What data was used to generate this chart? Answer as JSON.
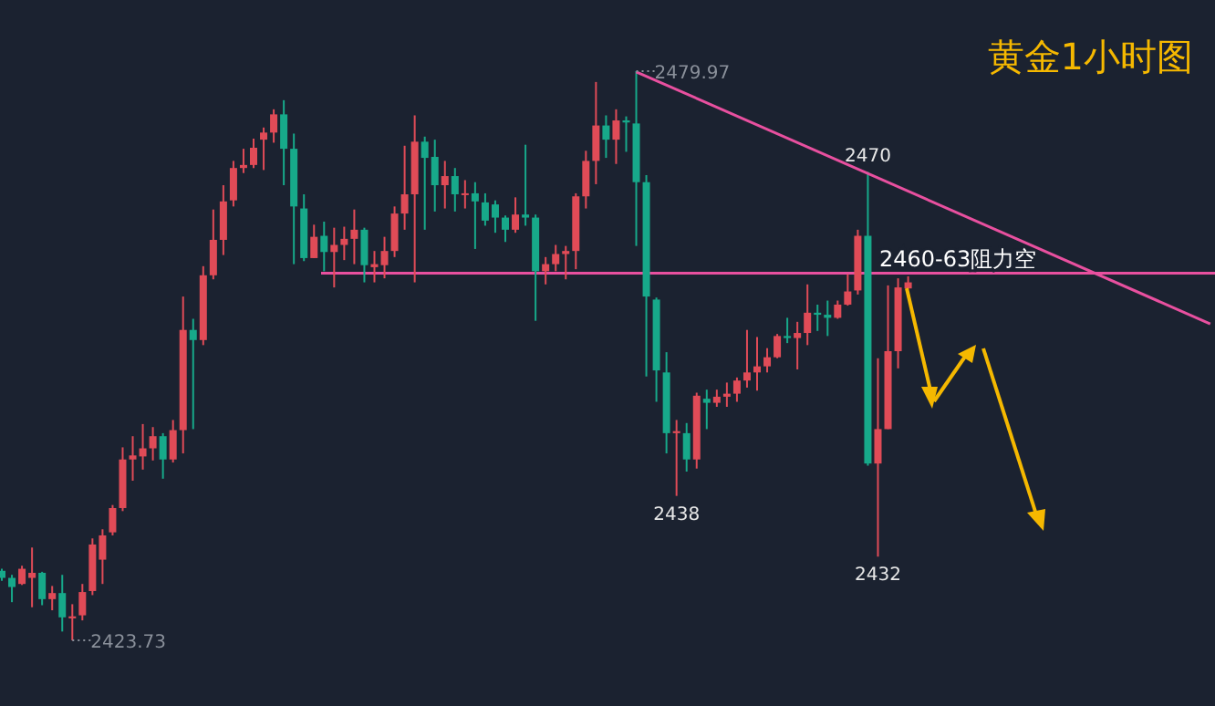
{
  "chart_data": {
    "type": "candlestick",
    "title": "黄金1小时图",
    "categories": [
      null,
      null,
      null,
      null,
      null,
      null,
      null,
      null,
      null,
      null,
      null,
      null,
      null,
      null,
      null,
      null,
      null,
      null,
      null,
      null,
      null,
      null,
      null,
      null,
      null,
      null,
      null,
      null,
      null,
      null,
      null,
      null,
      null,
      null,
      null,
      null,
      null,
      null,
      null,
      null,
      null,
      null,
      null,
      null,
      null,
      null,
      null,
      null,
      null,
      null,
      null,
      null,
      null,
      null,
      null,
      null,
      null,
      null,
      null,
      null,
      null,
      null,
      null,
      null,
      null,
      null,
      null,
      null,
      null,
      null,
      null,
      null,
      null,
      null,
      null,
      null,
      null,
      null,
      null,
      null,
      null,
      null,
      null,
      null,
      null,
      null,
      null,
      null,
      null,
      null,
      null,
      null,
      null,
      null,
      null,
      null,
      null,
      null,
      null,
      null,
      null,
      null,
      null,
      null,
      null,
      null,
      null,
      null,
      null,
      null,
      null,
      null,
      null,
      null,
      null,
      null,
      null,
      null,
      null,
      null,
      null
    ],
    "ohlc": [
      [
        2430.6,
        2430.8,
        2429.6,
        2429.9
      ],
      [
        2429.9,
        2430.2,
        2427.5,
        2429.0
      ],
      [
        2429.3,
        2431.1,
        2429.2,
        2430.8
      ],
      [
        2429.9,
        2432.9,
        2427.0,
        2430.4
      ],
      [
        2430.4,
        2430.5,
        2427.2,
        2427.8
      ],
      [
        2427.8,
        2429.1,
        2426.7,
        2428.4
      ],
      [
        2428.4,
        2430.2,
        2424.6,
        2426.0
      ],
      [
        2425.9,
        2427.3,
        2423.73,
        2426.1
      ],
      [
        2426.2,
        2429.3,
        2425.7,
        2428.5
      ],
      [
        2428.6,
        2433.8,
        2428.2,
        2433.2
      ],
      [
        2431.7,
        2434.7,
        2429.3,
        2434.1
      ],
      [
        2434.4,
        2437.1,
        2434.1,
        2436.8
      ],
      [
        2436.8,
        2442.8,
        2436.5,
        2441.6
      ],
      [
        2441.6,
        2443.9,
        2439.5,
        2442.0
      ],
      [
        2441.9,
        2445.1,
        2440.6,
        2442.7
      ],
      [
        2442.7,
        2444.8,
        2441.5,
        2443.9
      ],
      [
        2443.9,
        2444.2,
        2439.7,
        2441.6
      ],
      [
        2441.6,
        2445.5,
        2441.3,
        2444.5
      ],
      [
        2444.5,
        2457.7,
        2442.2,
        2454.4
      ],
      [
        2454.4,
        2455.5,
        2444.6,
        2453.4
      ],
      [
        2453.4,
        2460.7,
        2452.9,
        2459.8
      ],
      [
        2459.8,
        2466.3,
        2459.4,
        2463.3
      ],
      [
        2463.3,
        2468.7,
        2461.8,
        2467.1
      ],
      [
        2467.2,
        2471.1,
        2466.6,
        2470.4
      ],
      [
        2470.4,
        2472.3,
        2469.9,
        2470.7
      ],
      [
        2470.7,
        2473.3,
        2470.4,
        2472.4
      ],
      [
        2473.2,
        2474.4,
        2470.2,
        2473.9
      ],
      [
        2473.9,
        2476.2,
        2472.9,
        2475.7
      ],
      [
        2475.7,
        2477.1,
        2468.7,
        2472.3
      ],
      [
        2472.3,
        2473.8,
        2460.9,
        2466.6
      ],
      [
        2466.4,
        2467.8,
        2461.2,
        2461.5
      ],
      [
        2461.5,
        2464.8,
        2461.5,
        2463.6
      ],
      [
        2463.7,
        2465.1,
        2460.2,
        2462.1
      ],
      [
        2462.1,
        2464.5,
        2458.6,
        2462.8
      ],
      [
        2462.8,
        2464.6,
        2461.3,
        2463.4
      ],
      [
        2463.4,
        2466.3,
        2460.9,
        2464.3
      ],
      [
        2464.3,
        2464.5,
        2459.1,
        2460.8
      ],
      [
        2460.6,
        2462.2,
        2459.1,
        2460.9
      ],
      [
        2460.8,
        2463.6,
        2459.5,
        2462.2
      ],
      [
        2462.2,
        2466.6,
        2461.6,
        2465.9
      ],
      [
        2465.9,
        2472.6,
        2464.3,
        2467.8
      ],
      [
        2467.8,
        2475.6,
        2459.1,
        2473.0
      ],
      [
        2473.0,
        2473.5,
        2464.3,
        2471.4
      ],
      [
        2471.5,
        2473.2,
        2466.1,
        2468.7
      ],
      [
        2468.7,
        2471.1,
        2466.4,
        2469.6
      ],
      [
        2469.6,
        2470.4,
        2466.1,
        2467.8
      ],
      [
        2467.8,
        2469.2,
        2466.4,
        2467.9
      ],
      [
        2467.9,
        2469.0,
        2462.4,
        2467.1
      ],
      [
        2467.0,
        2467.9,
        2464.7,
        2465.2
      ],
      [
        2466.8,
        2467.2,
        2464.0,
        2465.5
      ],
      [
        2465.5,
        2465.7,
        2463.1,
        2464.3
      ],
      [
        2464.3,
        2467.5,
        2464.0,
        2465.8
      ],
      [
        2465.8,
        2472.7,
        2464.7,
        2465.5
      ],
      [
        2465.5,
        2465.8,
        2455.3,
        2460.2
      ],
      [
        2460.2,
        2461.6,
        2458.9,
        2460.9
      ],
      [
        2460.9,
        2462.8,
        2460.2,
        2461.9
      ],
      [
        2461.9,
        2462.7,
        2459.4,
        2462.2
      ],
      [
        2462.2,
        2467.9,
        2460.4,
        2467.6
      ],
      [
        2467.6,
        2472.1,
        2466.4,
        2471.1
      ],
      [
        2471.1,
        2478.9,
        2468.8,
        2474.6
      ],
      [
        2474.6,
        2475.6,
        2471.4,
        2473.2
      ],
      [
        2473.2,
        2476.2,
        2470.8,
        2475.1
      ],
      [
        2475.1,
        2475.5,
        2472.0,
        2474.9
      ],
      [
        2474.8,
        2479.97,
        2462.7,
        2469.0
      ],
      [
        2469.0,
        2469.7,
        2449.8,
        2457.7
      ],
      [
        2457.4,
        2457.6,
        2447.3,
        2450.4
      ],
      [
        2450.2,
        2452.2,
        2442.2,
        2444.2
      ],
      [
        2444.2,
        2445.5,
        2438,
        2444.4
      ],
      [
        2444.2,
        2445.2,
        2440.4,
        2441.6
      ],
      [
        2441.6,
        2448.2,
        2440.7,
        2447.9
      ],
      [
        2447.6,
        2448.5,
        2444.6,
        2447.2
      ],
      [
        2447.2,
        2448.5,
        2446.8,
        2447.8
      ],
      [
        2447.8,
        2449.2,
        2446.8,
        2448.1
      ],
      [
        2448.1,
        2449.7,
        2447.3,
        2449.4
      ],
      [
        2449.4,
        2454.4,
        2448.7,
        2450.2
      ],
      [
        2450.2,
        2453.7,
        2448.4,
        2450.8
      ],
      [
        2450.8,
        2452.6,
        2450.2,
        2451.7
      ],
      [
        2451.7,
        2454.0,
        2451.6,
        2453.8
      ],
      [
        2453.8,
        2455.6,
        2453.1,
        2453.6
      ],
      [
        2453.6,
        2455.2,
        2450.5,
        2454.1
      ],
      [
        2454.1,
        2458.9,
        2452.9,
        2456.1
      ],
      [
        2456.1,
        2456.9,
        2454.3,
        2455.9
      ],
      [
        2455.9,
        2457.3,
        2453.8,
        2455.6
      ],
      [
        2455.6,
        2457.3,
        2455.5,
        2456.9
      ],
      [
        2456.9,
        2459.9,
        2456.8,
        2458.2
      ],
      [
        2458.3,
        2464.3,
        2457.9,
        2463.7
      ],
      [
        2463.7,
        2470,
        2441.0,
        2441.2
      ],
      [
        2441.2,
        2451.6,
        2432,
        2444.6
      ],
      [
        2444.6,
        2458.8,
        2444.6,
        2452.3
      ],
      [
        2452.3,
        2459.5,
        2450.6,
        2458.6
      ],
      [
        2458.5,
        2459.7,
        2458.5,
        2459.1
      ],
      null,
      null,
      null,
      null,
      null,
      null,
      null,
      null,
      null,
      null,
      null,
      null,
      null,
      null,
      null,
      null,
      null,
      null,
      null,
      null,
      null,
      null,
      null,
      null,
      null,
      null,
      null,
      null,
      null,
      null
    ],
    "series": [
      {
        "type": "line",
        "values": [
          null,
          null,
          null,
          null,
          null,
          null,
          null,
          null,
          null,
          null,
          null,
          null,
          null,
          null,
          null,
          null,
          null,
          null,
          null,
          null,
          null,
          null,
          null,
          null,
          null,
          null,
          null,
          null,
          null,
          null,
          null,
          null,
          null,
          null,
          null,
          null,
          null,
          null,
          null,
          null,
          null,
          null,
          null,
          null,
          null,
          null,
          null,
          null,
          null,
          null,
          null,
          null,
          null,
          null,
          null,
          null,
          null,
          null,
          null,
          null,
          null,
          null,
          null,
          2479.9,
          null,
          null,
          null,
          null,
          null,
          null,
          null,
          null,
          null,
          null,
          null,
          null,
          null,
          null,
          null,
          null,
          null,
          null,
          null,
          null,
          null,
          null,
          null,
          null,
          null,
          null,
          null,
          null,
          null,
          null,
          null,
          null,
          null,
          null,
          null,
          null,
          null,
          null,
          null,
          null,
          null,
          null,
          null,
          null,
          null,
          null,
          null,
          null,
          null,
          null,
          null,
          null,
          null,
          null,
          null,
          null,
          2455.0
        ],
        "color": "#e8509f"
      }
    ],
    "ref_lines": [
      {
        "axis": "y",
        "value": 2460,
        "label": "2460-63阻力空",
        "color": "#e8509f"
      }
    ],
    "annotations": [
      "2479.97",
      "2423.73",
      {
        "text": "2470",
        "y": 2470
      },
      {
        "text": "2438",
        "y": 2438
      },
      {
        "text": "2432",
        "y": 2432
      }
    ]
  }
}
